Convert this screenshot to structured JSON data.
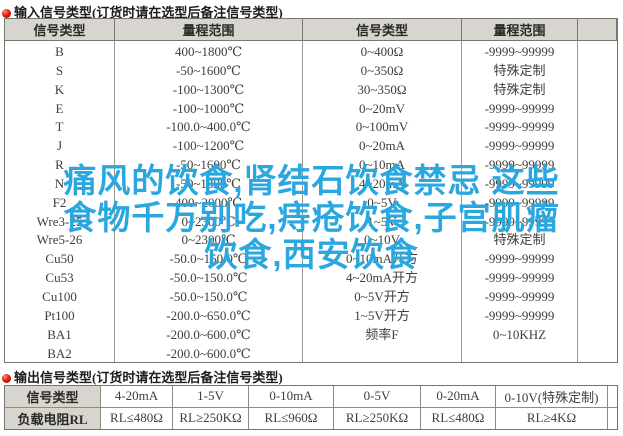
{
  "page": {
    "watermark": {
      "lines": [
        "痛风的饮食,肾结石饮食禁忌 这些",
        "食物千万别吃,痔疮饮食,子宫肌瘤",
        "饮食,西安饮食"
      ],
      "color": "#2ba7e0"
    },
    "colors": {
      "header_bg": "#d8d5cf",
      "table_border": "#767670",
      "body_text": "#403e37"
    }
  },
  "input_section": {
    "bullet_icon": "red-sphere-bullet",
    "title": "输入信号类型(订货时请在选型后备注信号类型)",
    "col_headers": [
      "信号类型",
      "量程范围",
      "信号类型",
      "量程范围"
    ],
    "left_rows": [
      {
        "type": "B",
        "range": "400~1800℃"
      },
      {
        "type": "S",
        "range": "-50~1600℃"
      },
      {
        "type": "K",
        "range": "-100~1300℃"
      },
      {
        "type": "E",
        "range": "-100~1000℃"
      },
      {
        "type": "T",
        "range": "-100.0~400.0℃"
      },
      {
        "type": "J",
        "range": "-100~1200℃"
      },
      {
        "type": "R",
        "range": "-50~1600℃"
      },
      {
        "type": "N",
        "range": "-50~1300℃"
      },
      {
        "type": "F2",
        "range": "400~2000℃"
      },
      {
        "type": "Wre3-25",
        "range": "0~2300℃"
      },
      {
        "type": "Wre5-26",
        "range": "0~2300℃"
      },
      {
        "type": "Cu50",
        "range": "-50.0~150.0℃"
      },
      {
        "type": "Cu53",
        "range": "-50.0~150.0℃"
      },
      {
        "type": "Cu100",
        "range": "-50.0~150.0℃"
      },
      {
        "type": "Pt100",
        "range": "-200.0~650.0℃"
      },
      {
        "type": "BA1",
        "range": "-200.0~600.0℃"
      },
      {
        "type": "BA2",
        "range": "-200.0~600.0℃"
      }
    ],
    "right_rows": [
      {
        "type": "0~400Ω",
        "range": "-9999~99999"
      },
      {
        "type": "0~350Ω",
        "range": "特殊定制"
      },
      {
        "type": "30~350Ω",
        "range": "特殊定制"
      },
      {
        "type": "0~20mV",
        "range": "-9999~99999"
      },
      {
        "type": "0~100mV",
        "range": "-9999~99999"
      },
      {
        "type": "0~20mA",
        "range": "-9999~99999"
      },
      {
        "type": "0~10mA",
        "range": "-9999~99999"
      },
      {
        "type": "4~20mA",
        "range": "-9999~99999"
      },
      {
        "type": "0~5V",
        "range": "-9999~99999"
      },
      {
        "type": "1~5V",
        "range": "-9999~99999"
      },
      {
        "type": "0~10V",
        "range": "特殊定制"
      },
      {
        "type": "0~10mA开方",
        "range": "-9999~99999"
      },
      {
        "type": "4~20mA开方",
        "range": "-9999~99999"
      },
      {
        "type": "0~5V开方",
        "range": "-9999~99999"
      },
      {
        "type": "1~5V开方",
        "range": "-9999~99999"
      },
      {
        "type": "频率F",
        "range": "0~10KHZ"
      }
    ]
  },
  "output_section": {
    "bullet_icon": "red-sphere-bullet",
    "title": "输出信号类型(订货时请在选型后备注信号类型)",
    "rows": [
      {
        "label": "信号类型",
        "values": [
          "4-20mA",
          "1-5V",
          "0-10mA",
          "0-5V",
          "0-20mA",
          "0-10V(特殊定制)"
        ]
      },
      {
        "label": "负载电阻RL",
        "values": [
          "RL≤480Ω",
          "RL≥250KΩ",
          "RL≤960Ω",
          "RL≥250KΩ",
          "RL≤480Ω",
          "RL≥4KΩ"
        ]
      }
    ]
  }
}
